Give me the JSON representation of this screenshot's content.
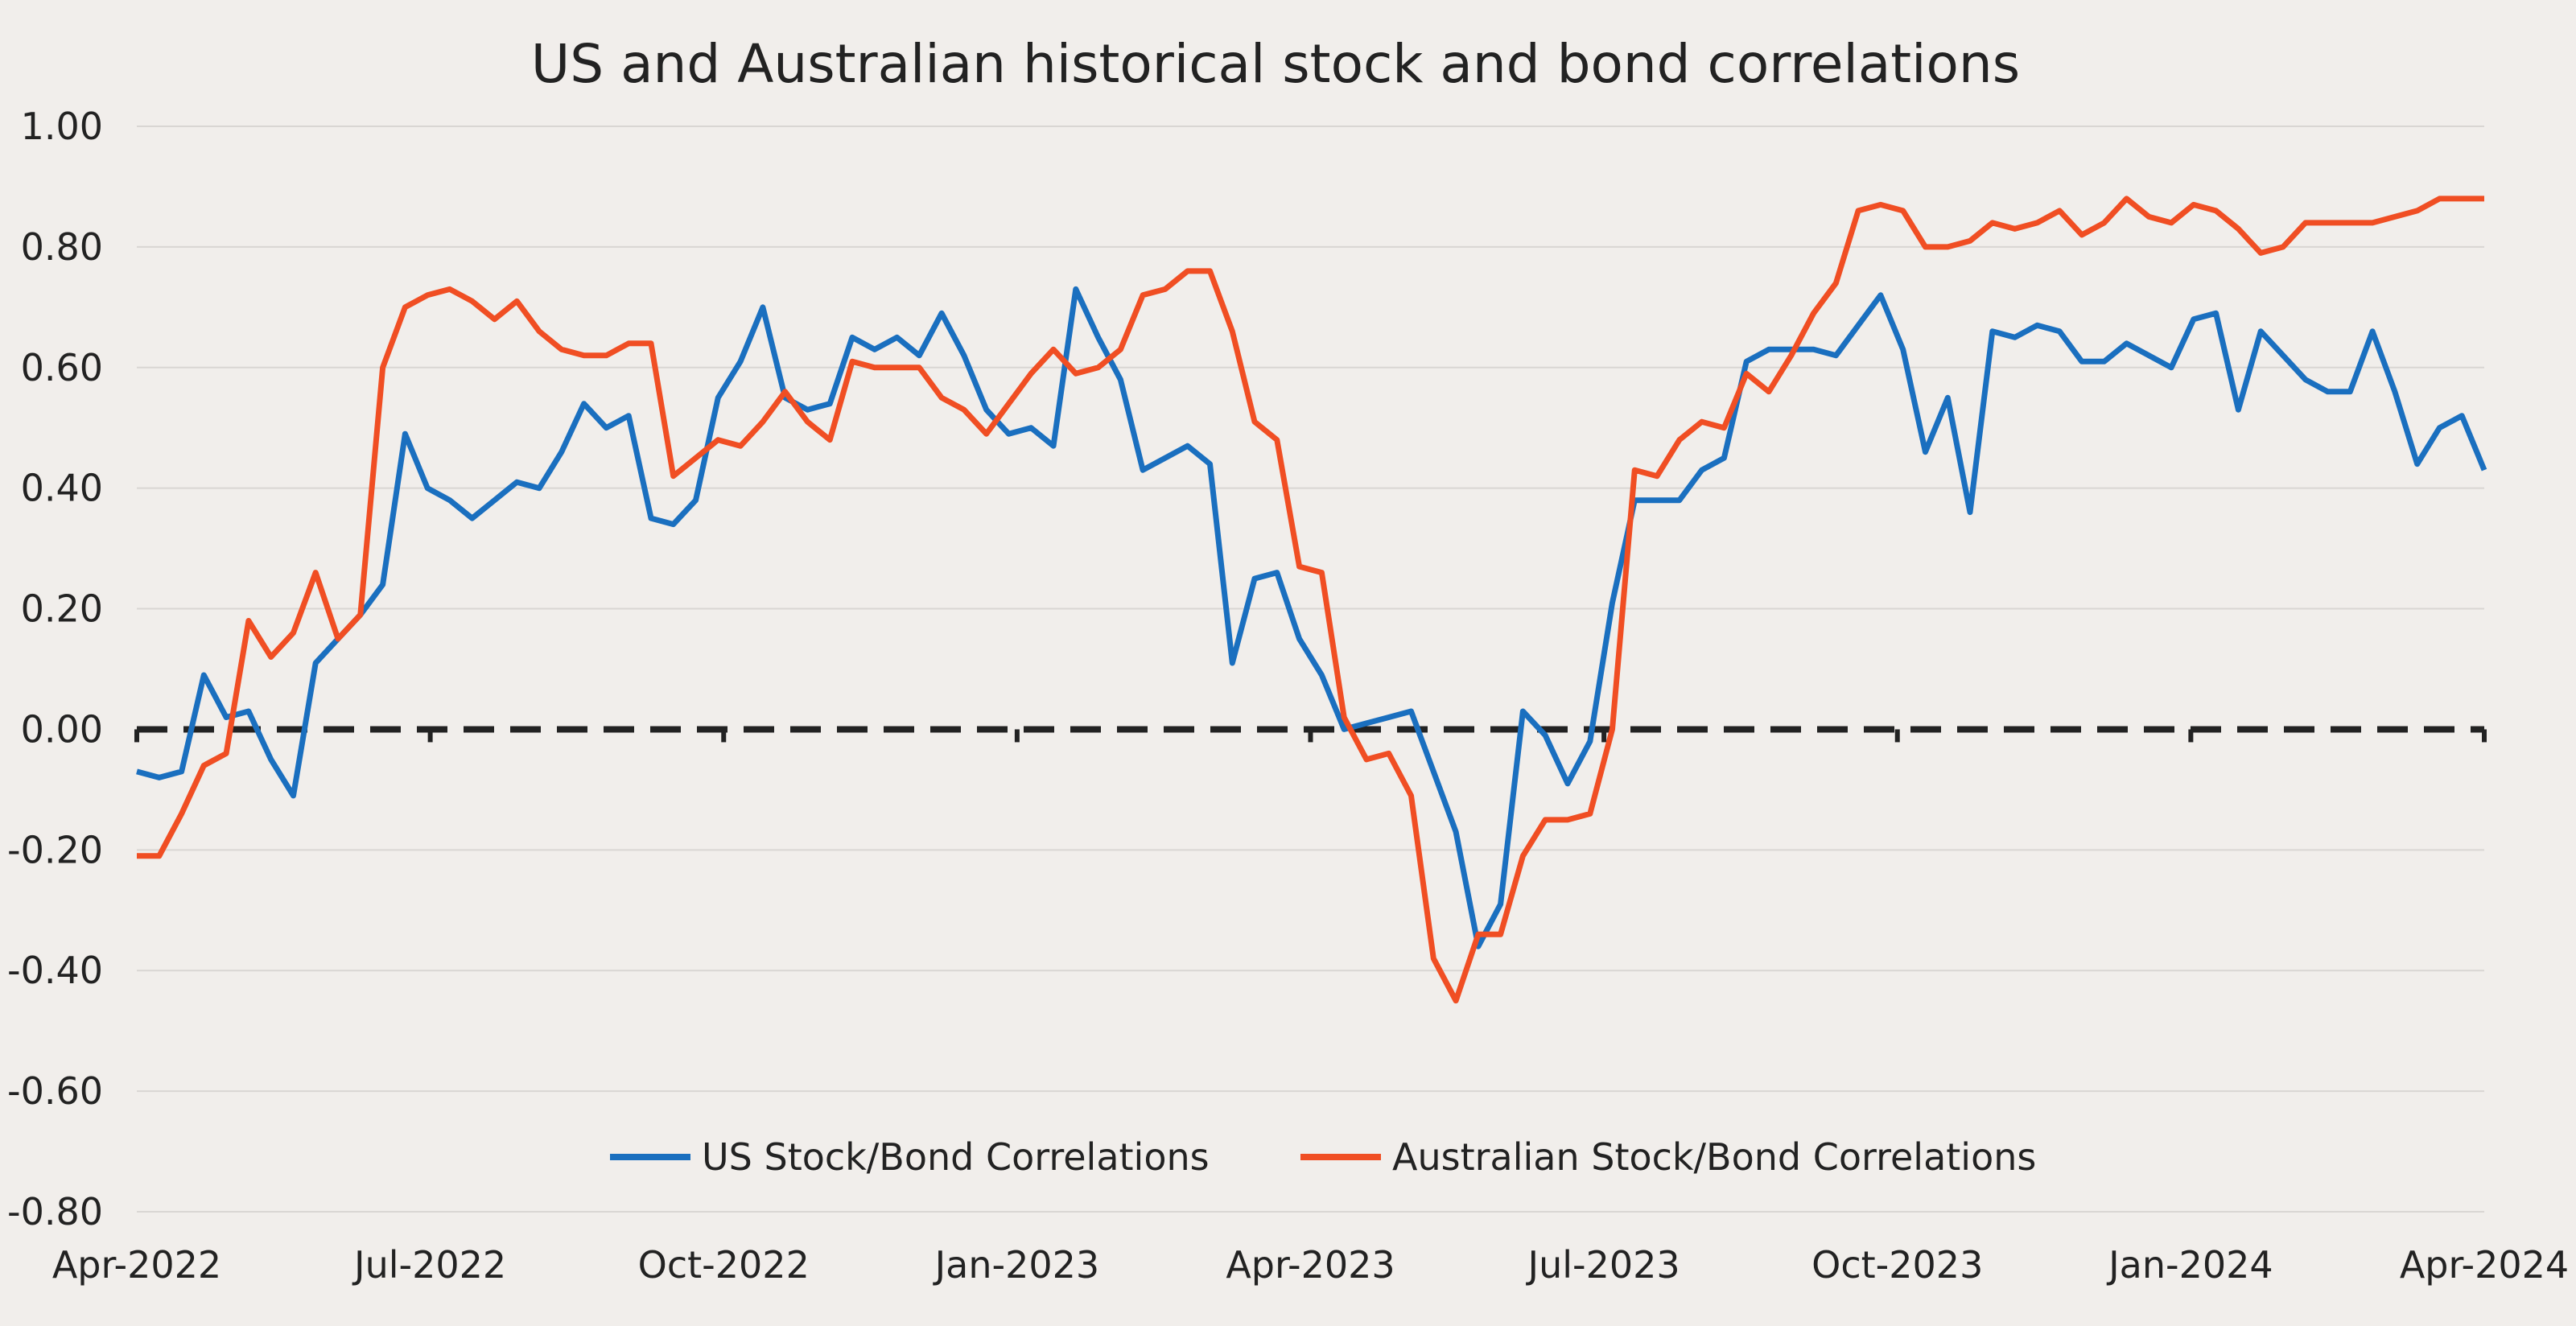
{
  "chart_data": {
    "type": "line",
    "title": "US and Australian historical stock and bond correlations",
    "xlabel": "",
    "ylabel": "",
    "ylim": [
      -0.8,
      1.0
    ],
    "y_ticks": [
      "1.00",
      "0.80",
      "0.60",
      "0.40",
      "0.20",
      "0.00",
      "-0.20",
      "-0.40",
      "-0.60",
      "-0.80"
    ],
    "x_tick_labels": [
      "Apr-2022",
      "Jul-2022",
      "Oct-2022",
      "Jan-2023",
      "Apr-2023",
      "Jul-2023",
      "Oct-2023",
      "Jan-2024",
      "Apr-2024"
    ],
    "x_start": "Apr-2022",
    "x_end": "Apr-2024",
    "grid": true,
    "zero_line": "dashed",
    "legend_position": "bottom",
    "series": [
      {
        "name": "US Stock/Bond Correlations",
        "color": "#1a6fbf",
        "values": [
          -0.07,
          -0.08,
          -0.07,
          0.09,
          0.02,
          0.03,
          -0.05,
          -0.11,
          0.11,
          0.15,
          0.19,
          0.24,
          0.49,
          0.4,
          0.38,
          0.35,
          0.38,
          0.41,
          0.4,
          0.46,
          0.54,
          0.5,
          0.52,
          0.35,
          0.34,
          0.38,
          0.55,
          0.61,
          0.7,
          0.55,
          0.53,
          0.54,
          0.65,
          0.63,
          0.65,
          0.62,
          0.69,
          0.62,
          0.53,
          0.49,
          0.5,
          0.47,
          0.73,
          0.65,
          0.58,
          0.43,
          0.45,
          0.47,
          0.44,
          0.11,
          0.25,
          0.26,
          0.15,
          0.09,
          0.0,
          0.01,
          0.02,
          0.03,
          -0.07,
          -0.17,
          -0.36,
          -0.29,
          0.03,
          -0.01,
          -0.09,
          -0.02,
          0.21,
          0.38,
          0.38,
          0.38,
          0.43,
          0.45,
          0.61,
          0.63,
          0.63,
          0.63,
          0.62,
          0.67,
          0.72,
          0.63,
          0.46,
          0.55,
          0.36,
          0.66,
          0.65,
          0.67,
          0.66,
          0.61,
          0.61,
          0.64,
          0.62,
          0.6,
          0.68,
          0.69,
          0.53,
          0.66,
          0.62,
          0.58,
          0.56,
          0.56,
          0.66,
          0.56,
          0.44,
          0.5,
          0.52,
          0.43
        ]
      },
      {
        "name": "Australian Stock/Bond Correlations",
        "color": "#f04e23",
        "values": [
          -0.21,
          -0.21,
          -0.14,
          -0.06,
          -0.04,
          0.18,
          0.12,
          0.16,
          0.26,
          0.15,
          0.19,
          0.6,
          0.7,
          0.72,
          0.73,
          0.71,
          0.68,
          0.71,
          0.66,
          0.63,
          0.62,
          0.62,
          0.64,
          0.64,
          0.42,
          0.45,
          0.48,
          0.47,
          0.51,
          0.56,
          0.51,
          0.48,
          0.61,
          0.6,
          0.6,
          0.6,
          0.55,
          0.53,
          0.49,
          0.54,
          0.59,
          0.63,
          0.59,
          0.6,
          0.63,
          0.72,
          0.73,
          0.76,
          0.76,
          0.66,
          0.51,
          0.48,
          0.27,
          0.26,
          0.02,
          -0.05,
          -0.04,
          -0.11,
          -0.38,
          -0.45,
          -0.34,
          -0.34,
          -0.21,
          -0.15,
          -0.15,
          -0.14,
          0.0,
          0.43,
          0.42,
          0.48,
          0.51,
          0.5,
          0.59,
          0.56,
          0.62,
          0.69,
          0.74,
          0.86,
          0.87,
          0.86,
          0.8,
          0.8,
          0.81,
          0.84,
          0.83,
          0.84,
          0.86,
          0.82,
          0.84,
          0.88,
          0.85,
          0.84,
          0.87,
          0.86,
          0.83,
          0.79,
          0.8,
          0.84,
          0.84,
          0.84,
          0.84,
          0.85,
          0.86,
          0.88,
          0.88,
          0.88
        ]
      }
    ]
  }
}
